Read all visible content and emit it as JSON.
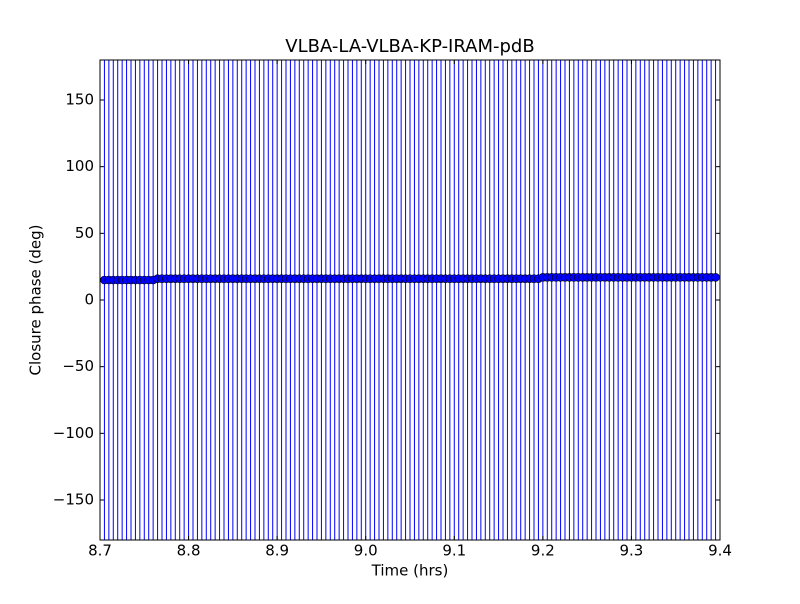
{
  "chart_data": {
    "type": "errorbar",
    "title": "VLBA-LA-VLBA-KP-IRAM-pdB",
    "xlabel": "Time (hrs)",
    "ylabel": "Closure phase (deg)",
    "xlim": [
      8.7,
      9.4
    ],
    "xticks": [
      8.7,
      8.8,
      8.9,
      {
        "value": 9,
        "label": "9.0"
      },
      9.1,
      9.2,
      9.3,
      9.4
    ],
    "ylim": [
      -180,
      180
    ],
    "yticks": [
      {
        "value": -150,
        "label": "−150"
      },
      {
        "value": -100,
        "label": "−100"
      },
      {
        "value": -50,
        "label": "−50"
      },
      0,
      50,
      100,
      150
    ],
    "color": "#0000ff",
    "yerr": 200,
    "x": [
      8.705,
      8.71,
      8.715,
      8.72,
      8.725,
      8.73,
      8.735,
      8.74,
      8.745,
      8.75,
      8.755,
      8.76,
      8.765,
      8.77,
      8.775,
      8.78,
      8.785,
      8.79,
      8.795,
      8.8,
      8.805,
      8.81,
      8.815,
      8.82,
      8.825,
      8.83,
      8.835,
      8.84,
      8.845,
      8.85,
      8.855,
      8.86,
      8.865,
      8.87,
      8.875,
      8.88,
      8.885,
      8.89,
      8.895,
      8.9,
      8.905,
      8.91,
      8.915,
      8.92,
      8.925,
      8.93,
      8.935,
      8.94,
      8.945,
      8.95,
      8.955,
      8.96,
      8.965,
      8.97,
      8.975,
      8.98,
      8.985,
      8.99,
      8.995,
      9.0,
      9.005,
      9.01,
      9.015,
      9.02,
      9.025,
      9.03,
      9.035,
      9.04,
      9.045,
      9.05,
      9.055,
      9.06,
      9.065,
      9.07,
      9.075,
      9.08,
      9.085,
      9.09,
      9.095,
      9.1,
      9.105,
      9.11,
      9.115,
      9.12,
      9.125,
      9.13,
      9.135,
      9.14,
      9.145,
      9.15,
      9.155,
      9.16,
      9.165,
      9.17,
      9.175,
      9.18,
      9.185,
      9.19,
      9.195,
      9.2,
      9.205,
      9.21,
      9.215,
      9.22,
      9.225,
      9.23,
      9.235,
      9.24,
      9.245,
      9.25,
      9.255,
      9.26,
      9.265,
      9.27,
      9.275,
      9.28,
      9.285,
      9.29,
      9.295,
      9.3,
      9.305,
      9.31,
      9.315,
      9.32,
      9.325,
      9.33,
      9.335,
      9.34,
      9.345,
      9.35,
      9.355,
      9.36,
      9.365,
      9.37,
      9.375,
      9.38,
      9.385,
      9.39,
      9.395
    ],
    "values": [
      15,
      15,
      15,
      15,
      15,
      15,
      15,
      15,
      15,
      15,
      15,
      15,
      16,
      16,
      16,
      16,
      16,
      16,
      16,
      16,
      16,
      16,
      16,
      16,
      16,
      16,
      16,
      16,
      16,
      16,
      16,
      16,
      16,
      16,
      16,
      16,
      16,
      16,
      16,
      16,
      16,
      16,
      16,
      16,
      16,
      16,
      16,
      16,
      16,
      16,
      16,
      16,
      16,
      16,
      16,
      16,
      16,
      16,
      16,
      16,
      16,
      16,
      16,
      16,
      16,
      16,
      16,
      16,
      16,
      16,
      16,
      16,
      16,
      16,
      16,
      16,
      16,
      16,
      16,
      16,
      16,
      16,
      16,
      16,
      16,
      16,
      16,
      16,
      16,
      16,
      16,
      16,
      16,
      16,
      16,
      16,
      16,
      16,
      16,
      17,
      17,
      17,
      17,
      17,
      17,
      17,
      17,
      17,
      17,
      17,
      17,
      17,
      17,
      17,
      17,
      17,
      17,
      17,
      17,
      17,
      17,
      17,
      17,
      17,
      17,
      17,
      17,
      17,
      17,
      17,
      17,
      17,
      17,
      17,
      17,
      17,
      17,
      17,
      17
    ]
  }
}
